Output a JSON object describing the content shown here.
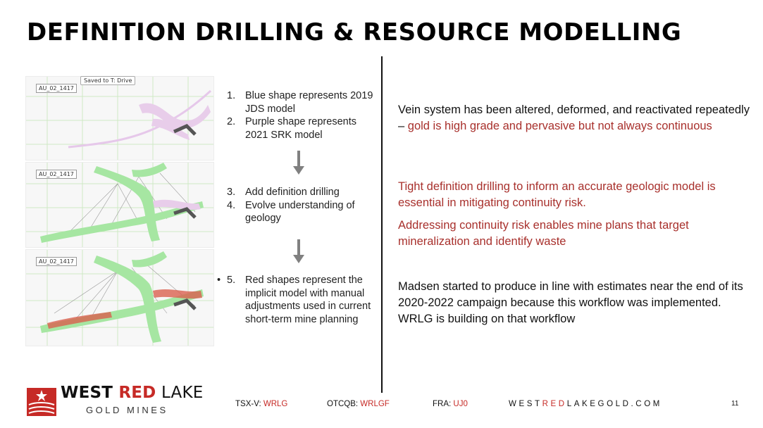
{
  "title": "DEFINITION DRILLING & RESOURCE MODELLING",
  "figures": {
    "saved_tag": "Saved to T: Drive",
    "panel_labels": [
      "AU_02_1417",
      "AU_02_1417",
      "AU_02_1417"
    ]
  },
  "steps": {
    "group1": [
      {
        "num": "1.",
        "text": "Blue shape represents 2019 JDS model"
      },
      {
        "num": "2.",
        "text": "Purple shape represents 2021 SRK model"
      }
    ],
    "group2": [
      {
        "num": "3.",
        "text": "Add definition drilling"
      },
      {
        "num": "4.",
        "text": "Evolve understanding of geology"
      }
    ],
    "group3": [
      {
        "num": "5.",
        "text": "Red shapes represent the implicit model with manual adjustments used in current short-term mine planning"
      }
    ]
  },
  "right": {
    "p1_dark": "Vein system has been altered, deformed, and reactivated repeatedly – ",
    "p1_red": "gold is high grade and pervasive but not always continuous",
    "p2": "Tight definition drilling to inform an accurate geologic model is essential in mitigating continuity risk.",
    "p3": "Addressing continuity risk enables mine plans that target mineralization and identify waste",
    "p4": "Madsen started to produce in line with estimates near the end of its 2020-2022 campaign because this workflow was implemented. WRLG is building on that workflow"
  },
  "footer": {
    "logo_west": "WEST ",
    "logo_red": "RED",
    "logo_lake": " LAKE",
    "logo_sub": "GOLD MINES",
    "tsx_label": "TSX-V: ",
    "tsx_value": "WRLG",
    "otc_label": "OTCQB: ",
    "otc_value": "WRLGF",
    "fra_label": "FRA: ",
    "fra_value": "UJ0",
    "web_a": "WEST",
    "web_b": "RED",
    "web_c": "LAKEGOLD.COM",
    "page": "11"
  },
  "colors": {
    "accent_red": "#c62a26",
    "text_red": "#a8302c",
    "model_green": "#a6e6a2",
    "model_purple": "#e3c6e6",
    "model_red": "#d9604f"
  }
}
